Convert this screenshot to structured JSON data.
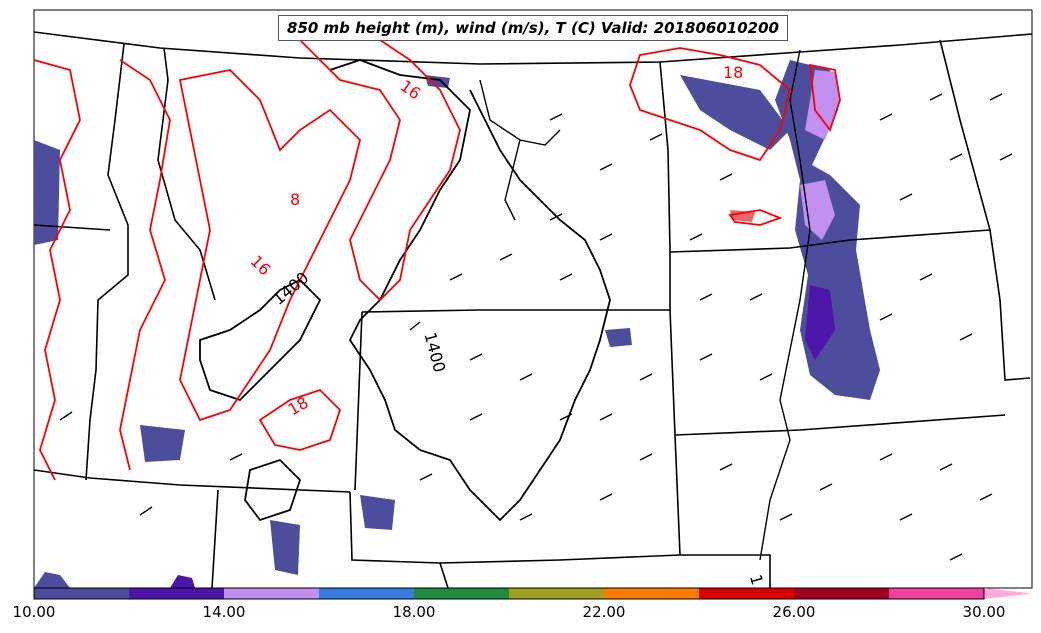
{
  "title": "850 mb height (m), wind (m/s), T (C) Valid: 201806010200",
  "colorbar": {
    "tick_labels": [
      "10.00",
      "14.00",
      "18.00",
      "22.00",
      "26.00",
      "30.00"
    ],
    "colors": [
      "#4d4d9e",
      "#4c16a8",
      "#c08ff0",
      "#3a7be0",
      "#1e8c3c",
      "#a0a020",
      "#ff7a00",
      "#dd0000",
      "#a00022",
      "#f040a0",
      "#ffaadd"
    ]
  },
  "map_labels": {
    "temp_contours": [
      "18",
      "16",
      "8",
      "16",
      "18"
    ],
    "height_contours": [
      "1400",
      "1400",
      "1"
    ]
  },
  "colors": {
    "temperature_contour": "#ff0000",
    "height_contour": "#000000",
    "borders": "#000000"
  }
}
